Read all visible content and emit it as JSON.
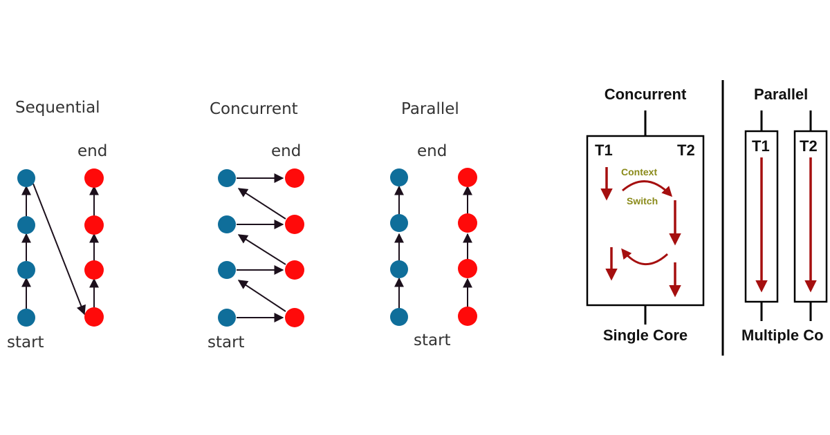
{
  "left_panel": {
    "sequential": {
      "title": "Sequential",
      "end_label": "end",
      "start_label": "start"
    },
    "concurrent": {
      "title": "Concurrent",
      "end_label": "end",
      "start_label": "start"
    },
    "parallel": {
      "title": "Parallel",
      "end_label": "end",
      "start_label": "start"
    }
  },
  "right_panel": {
    "concurrent": {
      "title": "Concurrent",
      "thread_1": "T1",
      "thread_2": "T2",
      "context": "Context",
      "switch": "Switch",
      "footer": "Single Core"
    },
    "parallel": {
      "title": "Parallel",
      "thread_1": "T1",
      "thread_2": "T2",
      "footer": "Multiple Co"
    }
  },
  "colors": {
    "task_blue": "#0f6e9a",
    "task_red": "#ff0a0a",
    "arrow_dark": "#2b1d2b",
    "thread_arrow": "#a50f0f",
    "context_text": "#8a8a1a"
  }
}
